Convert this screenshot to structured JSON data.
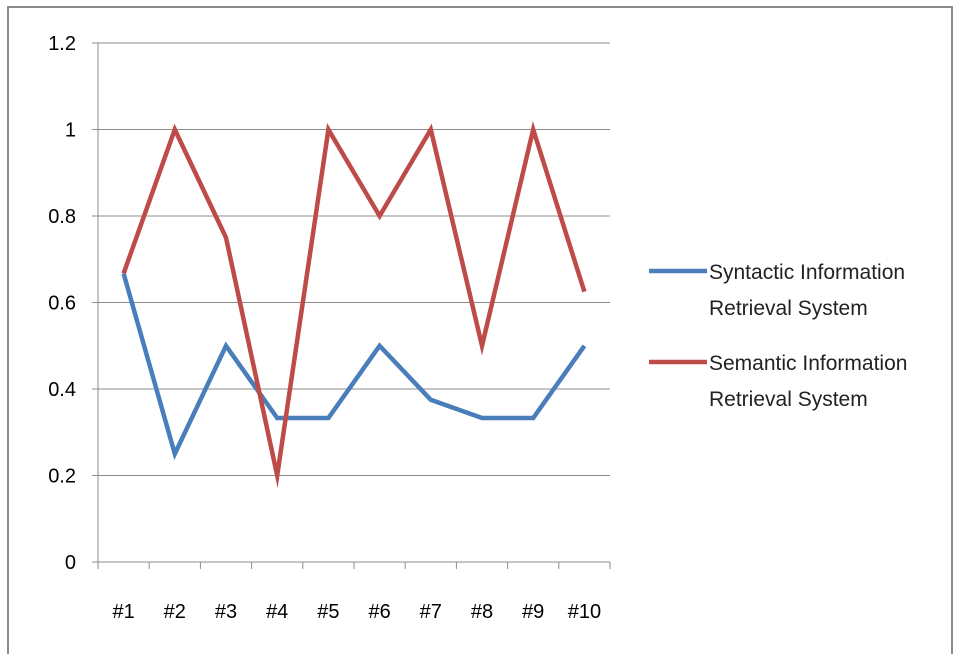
{
  "chart_data": {
    "type": "line",
    "title": "",
    "xlabel": "",
    "ylabel": "",
    "categories": [
      "#1",
      "#2",
      "#3",
      "#4",
      "#5",
      "#6",
      "#7",
      "#8",
      "#9",
      "#10"
    ],
    "ylim": [
      0,
      1.2
    ],
    "yticks": [
      0,
      0.2,
      0.4,
      0.6,
      0.8,
      1,
      1.2
    ],
    "ytick_labels": [
      "0",
      "0.2",
      "0.4",
      "0.6",
      "0.8",
      "1",
      "1.2"
    ],
    "grid": true,
    "legend_position": "right",
    "series": [
      {
        "name": "Syntactic Information Retrieval System",
        "legend_lines": [
          "Syntactic Information",
          "Retrieval System"
        ],
        "color": "#4a7ebb",
        "values": [
          0.667,
          0.25,
          0.5,
          0.333,
          0.333,
          0.5,
          0.375,
          0.333,
          0.333,
          0.5
        ]
      },
      {
        "name": "Semantic Information Retrieval System",
        "legend_lines": [
          "Semantic Information",
          "Retrieval System"
        ],
        "color": "#be4b48",
        "values": [
          0.667,
          1,
          0.75,
          0.2,
          1,
          0.8,
          1,
          0.5,
          1,
          0.625
        ]
      }
    ]
  }
}
